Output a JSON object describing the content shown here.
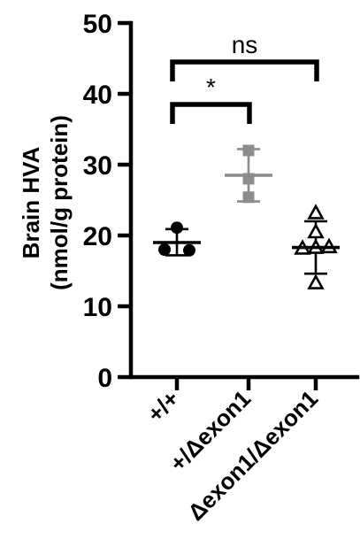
{
  "chart_data": {
    "type": "scatter",
    "ylabel_line1": "Brain HVA",
    "ylabel_line2": "(nmol/g protein)",
    "xlabel": "",
    "ylim": [
      0,
      50
    ],
    "yticks": [
      0,
      10,
      20,
      30,
      40,
      50
    ],
    "categories": [
      "+/+",
      "+/Δexon1",
      "Δexon1/Δexon1"
    ],
    "groups": [
      {
        "category": "+/+",
        "marker": "circle",
        "filled": true,
        "color": "#000000",
        "points": [
          21.1,
          18.0,
          17.9
        ],
        "mean": 19.0,
        "sd": [
          17.2,
          20.9
        ]
      },
      {
        "category": "+/Δexon1",
        "marker": "square",
        "filled": true,
        "color": "#8c8c8c",
        "points": [
          32.0,
          28.0,
          25.4
        ],
        "mean": 28.5,
        "sd": [
          24.8,
          32.2
        ]
      },
      {
        "category": "Δexon1/Δexon1",
        "marker": "triangle",
        "filled": false,
        "color": "#000000",
        "points": [
          23.2,
          20.5,
          18.2,
          18.3,
          18.4,
          13.3
        ],
        "mean": 18.3,
        "sd": [
          14.6,
          22.0
        ]
      }
    ],
    "annotations": [
      {
        "label": "*",
        "from": "+/+",
        "to": "+/Δexon1",
        "y": 38.5
      },
      {
        "label": "ns",
        "from": "+/+",
        "to": "Δexon1/Δexon1",
        "y": 44.5
      }
    ],
    "grid": false,
    "legend": "none"
  }
}
